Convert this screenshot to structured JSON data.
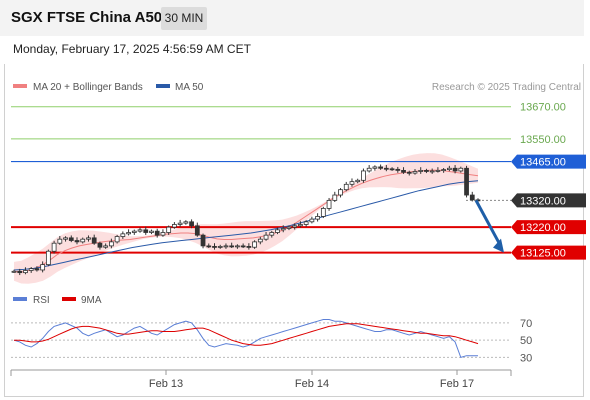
{
  "header": {
    "title": "SGX FTSE China A50",
    "timeframe": "30 MIN"
  },
  "datetime": "Monday, February 17, 2025 4:56:59 AM CET",
  "legend": {
    "bollinger": {
      "label": "MA 20 + Bollinger Bands",
      "color": "#f08080"
    },
    "ma50": {
      "label": "MA 50",
      "color": "#2a5aa8"
    },
    "credit": "Research © 2025 Trading Central"
  },
  "rsi_legend": {
    "rsi": {
      "label": "RSI",
      "color": "#5b7fd6"
    },
    "ma9": {
      "label": "9MA",
      "color": "#dd0000"
    }
  },
  "colors": {
    "resistance_green": "#8fcf6a",
    "pivot_blue": "#1f5fd6",
    "support_red": "#e00000",
    "current_dark": "#333333",
    "candle": "#333333",
    "band_fill": "#fbd9d9"
  },
  "chart_data": [
    {
      "type": "line",
      "title": "SGX FTSE China A50",
      "x_ticks": [
        "Feb 13",
        "Feb 14",
        "Feb 17"
      ],
      "ylim": [
        13030,
        13710
      ],
      "levels": [
        {
          "label": "13670.00",
          "value": 13670,
          "kind": "resistance"
        },
        {
          "label": "13550.00",
          "value": 13550,
          "kind": "resistance"
        },
        {
          "label": "13465.00",
          "value": 13465,
          "kind": "pivot"
        },
        {
          "label": "13320.00",
          "value": 13320,
          "kind": "current"
        },
        {
          "label": "13220.00",
          "value": 13220,
          "kind": "support"
        },
        {
          "label": "13125.00",
          "value": 13125,
          "kind": "support"
        }
      ],
      "series": [
        {
          "name": "Price",
          "values": [
            13055,
            13050,
            13058,
            13065,
            13060,
            13080,
            13130,
            13160,
            13175,
            13180,
            13170,
            13165,
            13175,
            13180,
            13160,
            13145,
            13150,
            13165,
            13185,
            13195,
            13200,
            13205,
            13210,
            13200,
            13205,
            13190,
            13200,
            13220,
            13230,
            13235,
            13240,
            13225,
            13190,
            13150,
            13148,
            13145,
            13148,
            13150,
            13148,
            13150,
            13148,
            13145,
            13165,
            13175,
            13190,
            13200,
            13210,
            13215,
            13220,
            13225,
            13230,
            13240,
            13250,
            13260,
            13290,
            13320,
            13340,
            13360,
            13380,
            13390,
            13395,
            13430,
            13440,
            13445,
            13440,
            13438,
            13436,
            13432,
            13425,
            13422,
            13428,
            13432,
            13428,
            13430,
            13432,
            13435,
            13440,
            13430,
            13440,
            13340,
            13322,
            13320
          ]
        },
        {
          "name": "MA 20",
          "values": [
            13055,
            13052,
            13058,
            13068,
            13080,
            13098,
            13118,
            13132,
            13142,
            13150,
            13155,
            13160,
            13164,
            13168,
            13170,
            13172,
            13174,
            13178,
            13182,
            13186,
            13190,
            13194,
            13196,
            13198,
            13198,
            13196,
            13190,
            13182,
            13176,
            13174,
            13174,
            13176,
            13178,
            13180,
            13184,
            13190,
            13198,
            13208,
            13222,
            13238,
            13256,
            13274,
            13292,
            13310,
            13328,
            13344,
            13358,
            13372,
            13384,
            13394,
            13402,
            13410,
            13416,
            13420,
            13424,
            13428,
            13430,
            13432,
            13433,
            13432,
            13428,
            13424,
            13420,
            13416,
            13412
          ]
        },
        {
          "name": "MA 50",
          "values": [
            13060,
            13062,
            13066,
            13072,
            13080,
            13088,
            13096,
            13104,
            13112,
            13120,
            13128,
            13136,
            13144,
            13150,
            13156,
            13162,
            13166,
            13170,
            13174,
            13178,
            13182,
            13186,
            13190,
            13194,
            13198,
            13204,
            13210,
            13218,
            13226,
            13236,
            13246,
            13256,
            13266,
            13276,
            13286,
            13296,
            13306,
            13316,
            13326,
            13336,
            13346,
            13356,
            13364,
            13372,
            13380,
            13386,
            13390,
            13393
          ]
        }
      ],
      "forecast_arrow": {
        "from": 13320,
        "to": 13125
      }
    },
    {
      "type": "line",
      "title": "RSI",
      "ylim": [
        20,
        85
      ],
      "y_ticks": [
        70,
        50,
        30
      ],
      "series": [
        {
          "name": "RSI",
          "values": [
            50,
            48,
            44,
            42,
            46,
            52,
            60,
            66,
            68,
            70,
            67,
            64,
            58,
            55,
            58,
            60,
            62,
            58,
            54,
            56,
            60,
            64,
            66,
            62,
            58,
            56,
            60,
            64,
            68,
            70,
            72,
            70,
            62,
            52,
            44,
            42,
            44,
            46,
            45,
            44,
            42,
            44,
            48,
            52,
            54,
            56,
            58,
            60,
            62,
            64,
            66,
            68,
            70,
            72,
            74,
            74,
            72,
            72,
            70,
            68,
            66,
            64,
            62,
            60,
            60,
            62,
            62,
            60,
            58,
            56,
            58,
            60,
            58,
            56,
            54,
            52,
            54,
            48,
            30,
            32,
            32,
            32
          ]
        },
        {
          "name": "9MA",
          "values": [
            50,
            50,
            49,
            48,
            48,
            49,
            51,
            54,
            57,
            60,
            63,
            65,
            66,
            66,
            65,
            64,
            62,
            60,
            58,
            57,
            57,
            58,
            59,
            60,
            61,
            61,
            60,
            60,
            60,
            61,
            62,
            63,
            64,
            64,
            62,
            59,
            56,
            53,
            50,
            48,
            46,
            45,
            44,
            44,
            45,
            46,
            48,
            50,
            52,
            54,
            56,
            58,
            60,
            62,
            64,
            66,
            67,
            68,
            69,
            69,
            69,
            68,
            67,
            66,
            65,
            64,
            63,
            62,
            61,
            60,
            59,
            58,
            58,
            57,
            56,
            55,
            55,
            54,
            52,
            50,
            48,
            46
          ]
        }
      ]
    }
  ]
}
